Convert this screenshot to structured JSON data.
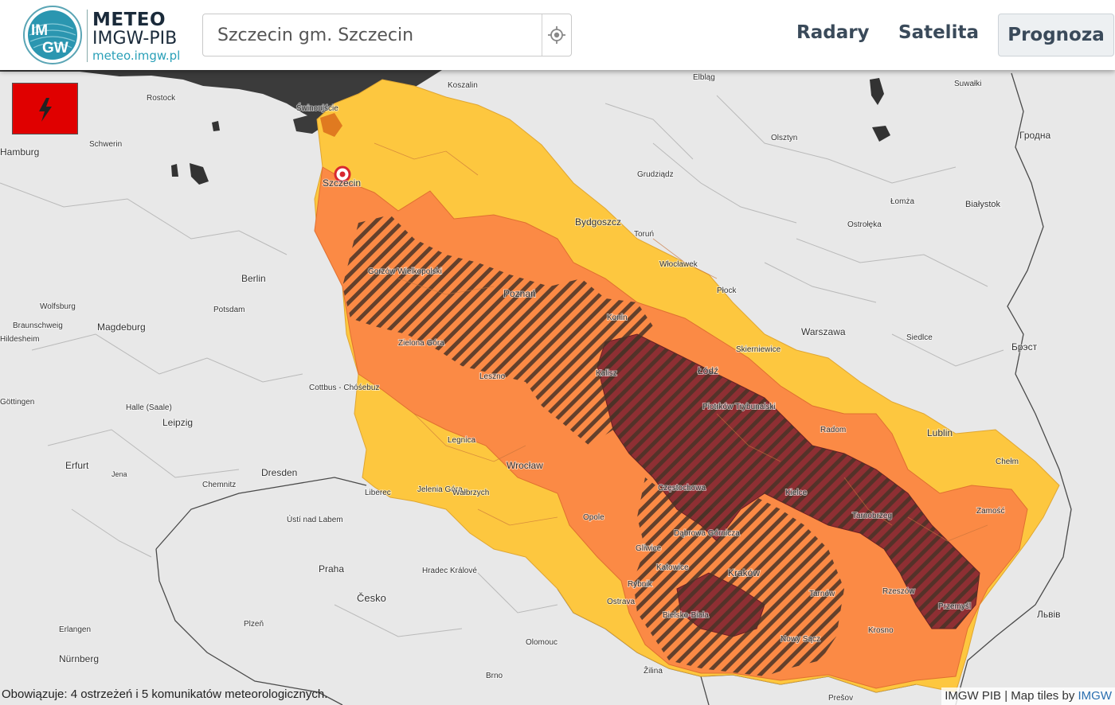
{
  "header": {
    "brand_line1": "METEO",
    "brand_line2": "IMGW-PIB",
    "brand_line3": "meteo.imgw.pl",
    "logo_text_top": "IM",
    "logo_text_bottom": "GW",
    "search_value": "Szczecin gm. Szczecin",
    "nav": {
      "radary": "Radary",
      "satelita": "Satelita",
      "prognoza": "Prognoza"
    }
  },
  "warning_button": {
    "icon": "lightning-icon",
    "color": "#e00000"
  },
  "map": {
    "colors": {
      "level1_yellow": "#fdc73f",
      "level2_orange": "#fb8a45",
      "level3_red": "#8e2f33",
      "stripes": "#4a3327",
      "sea": "#3b3b3b",
      "land": "#e8e8e8"
    },
    "selected_location": "Szczecin",
    "labels": [
      {
        "name": "Koszalin"
      },
      {
        "name": "Elbląg"
      },
      {
        "name": "Suwałki"
      },
      {
        "name": "Rostock"
      },
      {
        "name": "Świnoujście"
      },
      {
        "name": "Schwerin"
      },
      {
        "name": "Olsztyn"
      },
      {
        "name": "Гродна"
      },
      {
        "name": "Grudziądz"
      },
      {
        "name": "Szczecin"
      },
      {
        "name": "Łomża"
      },
      {
        "name": "Białystok"
      },
      {
        "name": "Bydgoszcz"
      },
      {
        "name": "Toruń"
      },
      {
        "name": "Ostrołęka"
      },
      {
        "name": "Włocławek"
      },
      {
        "name": "Gorzów Wielkopolski"
      },
      {
        "name": "Berlin"
      },
      {
        "name": "Płock"
      },
      {
        "name": "Wolfsburg"
      },
      {
        "name": "Potsdam"
      },
      {
        "name": "Poznań"
      },
      {
        "name": "Braunschweig"
      },
      {
        "name": "Magdeburg"
      },
      {
        "name": "Konin"
      },
      {
        "name": "Warszawa"
      },
      {
        "name": "Siedlce"
      },
      {
        "name": "Zielona Góra"
      },
      {
        "name": "Skierniewice"
      },
      {
        "name": "Брэст"
      },
      {
        "name": "Kalisz"
      },
      {
        "name": "Łódź"
      },
      {
        "name": "Leszno"
      },
      {
        "name": "Cottbus - Chóśebuz"
      },
      {
        "name": "Piotrków Trybunalski"
      },
      {
        "name": "Halle (Saale)"
      },
      {
        "name": "Radom"
      },
      {
        "name": "Leipzig"
      },
      {
        "name": "Lublin"
      },
      {
        "name": "Legnica"
      },
      {
        "name": "Chełm"
      },
      {
        "name": "Erfurt"
      },
      {
        "name": "Wrocław"
      },
      {
        "name": "Jena"
      },
      {
        "name": "Dresden"
      },
      {
        "name": "Chemnitz"
      },
      {
        "name": "Częstochowa"
      },
      {
        "name": "Liberec"
      },
      {
        "name": "Jelenia Góra"
      },
      {
        "name": "Wałbrzych"
      },
      {
        "name": "Kielce"
      },
      {
        "name": "Zamość"
      },
      {
        "name": "Tarnobrzeg"
      },
      {
        "name": "Opole"
      },
      {
        "name": "Ústí nad Labem"
      },
      {
        "name": "Dąbrowa Górnicza"
      },
      {
        "name": "Gliwice"
      },
      {
        "name": "Katowice"
      },
      {
        "name": "Praha"
      },
      {
        "name": "Hradec Králové"
      },
      {
        "name": "Kraków"
      },
      {
        "name": "Rybnik"
      },
      {
        "name": "Rzeszów"
      },
      {
        "name": "Tarnów"
      },
      {
        "name": "Česko"
      },
      {
        "name": "Ostrava"
      },
      {
        "name": "Przemyśl"
      },
      {
        "name": "Львів"
      },
      {
        "name": "Bielsko-Biała"
      },
      {
        "name": "Plzeň"
      },
      {
        "name": "Erlangen"
      },
      {
        "name": "Olomouc"
      },
      {
        "name": "Nowy Sącz"
      },
      {
        "name": "Krosno"
      },
      {
        "name": "Nürnberg"
      },
      {
        "name": "Brno"
      },
      {
        "name": "Žilina"
      },
      {
        "name": "Prešov"
      },
      {
        "name": "Hamburg"
      },
      {
        "name": "Hildesheim"
      },
      {
        "name": "Göttingen"
      }
    ]
  },
  "footer": {
    "status": "Obowiązuje: 4 ostrzeżeń i 5 komunikatów meteorologicznych.",
    "attribution": "IMGW PIB | Map tiles by",
    "attribution_link": "IMGW"
  }
}
